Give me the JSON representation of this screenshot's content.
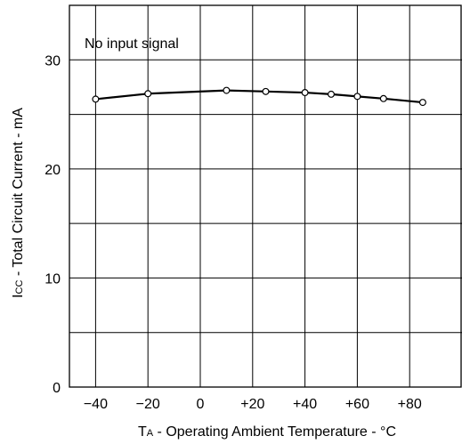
{
  "chart_data": {
    "type": "line",
    "annotation": "No input signal",
    "xlabel_main": "T",
    "xlabel_sub": "A",
    "xlabel_rest": " - Operating Ambient Temperature - °C",
    "ylabel_main": "I",
    "ylabel_sub": "CC",
    "ylabel_rest": " - Total Circuit Current - mA",
    "xlim": [
      -50,
      100
    ],
    "ylim": [
      0,
      35
    ],
    "x_ticks": [
      -40,
      -20,
      0,
      20,
      40,
      60,
      80
    ],
    "x_tick_labels": [
      "−40",
      "−20",
      "0",
      "+20",
      "+40",
      "+60",
      "+80"
    ],
    "y_ticks": [
      0,
      10,
      20,
      30
    ],
    "y_tick_labels": [
      "0",
      "10",
      "20",
      "30"
    ],
    "x_grid": [
      -40,
      -20,
      0,
      20,
      40,
      60,
      80
    ],
    "y_grid": [
      5,
      10,
      15,
      20,
      25,
      30
    ],
    "series": [
      {
        "x": [
          -40,
          -20,
          10,
          25,
          40,
          50,
          60,
          70,
          85
        ],
        "y": [
          26.4,
          26.9,
          27.2,
          27.1,
          27.0,
          26.85,
          26.65,
          26.45,
          26.1
        ]
      }
    ]
  }
}
